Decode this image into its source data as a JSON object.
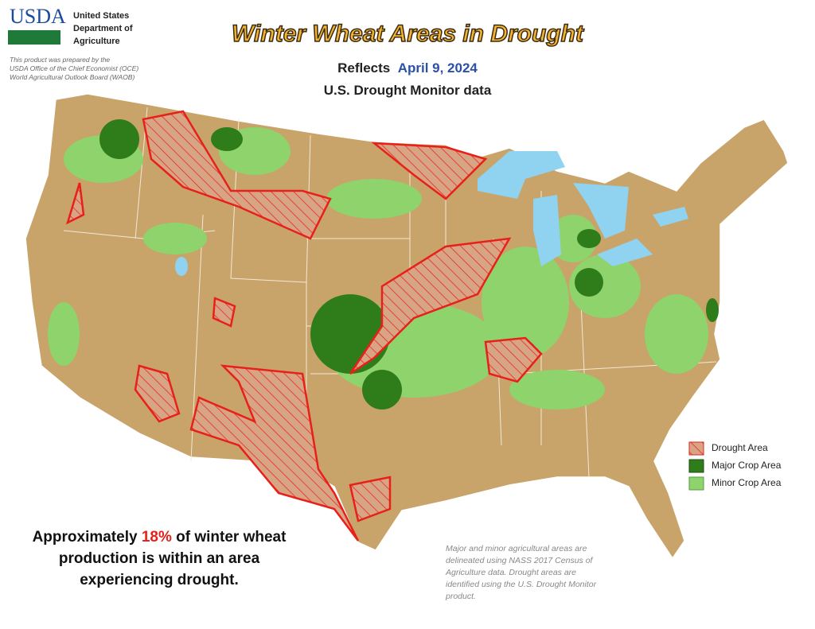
{
  "header": {
    "logo": "USDA",
    "agency_lines": [
      "United States",
      "Department of",
      "Agriculture"
    ],
    "credit_lines": [
      "This product was prepared by the",
      "USDA Office of the Chief Economist (OCE)",
      "World Agricultural Outlook Board (WAOB)"
    ]
  },
  "title": "Winter Wheat Areas in Drought",
  "subtitle": {
    "prefix": "Reflects",
    "date": "April 9, 2024"
  },
  "subtitle2": "U.S. Drought Monitor data",
  "legend": [
    "Drought Area",
    "Major Crop Area",
    "Minor Crop Area"
  ],
  "summary": {
    "lines": [
      [
        "Approximately",
        "18%",
        "of winter wheat"
      ],
      [
        "production is within an area"
      ],
      [
        "experiencing drought."
      ]
    ]
  },
  "note": [
    "Major and minor agricultural areas are",
    "delineated using NASS 2017 Census of",
    "Agriculture data.  Drought areas are",
    "identified using the U.S. Drought Monitor",
    "product."
  ]
}
